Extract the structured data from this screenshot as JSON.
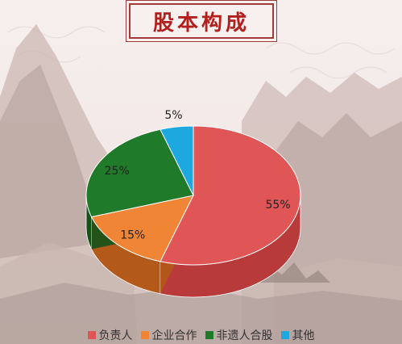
{
  "title": "股本构成",
  "colors": {
    "title": "#b2201e",
    "border": "#a23a3a",
    "mountain_dark": "#a99893",
    "mountain_light": "#d8c8c3",
    "label_text": "#222222"
  },
  "chart_data": {
    "type": "pie",
    "style": "3d",
    "series": [
      {
        "label": "负责人",
        "value": 55,
        "display": "55%",
        "color": "#e05656",
        "side_color": "#b83a3a"
      },
      {
        "label": "企业合作",
        "value": 15,
        "display": "15%",
        "color": "#f08535",
        "side_color": "#b35a1a"
      },
      {
        "label": "非遗人合股",
        "value": 25,
        "display": "25%",
        "color": "#1f7a2a",
        "side_color": "#145219"
      },
      {
        "label": "其他",
        "value": 5,
        "display": "5%",
        "color": "#1ea8e0",
        "side_color": "#137ca6"
      }
    ],
    "legend_position": "bottom"
  }
}
